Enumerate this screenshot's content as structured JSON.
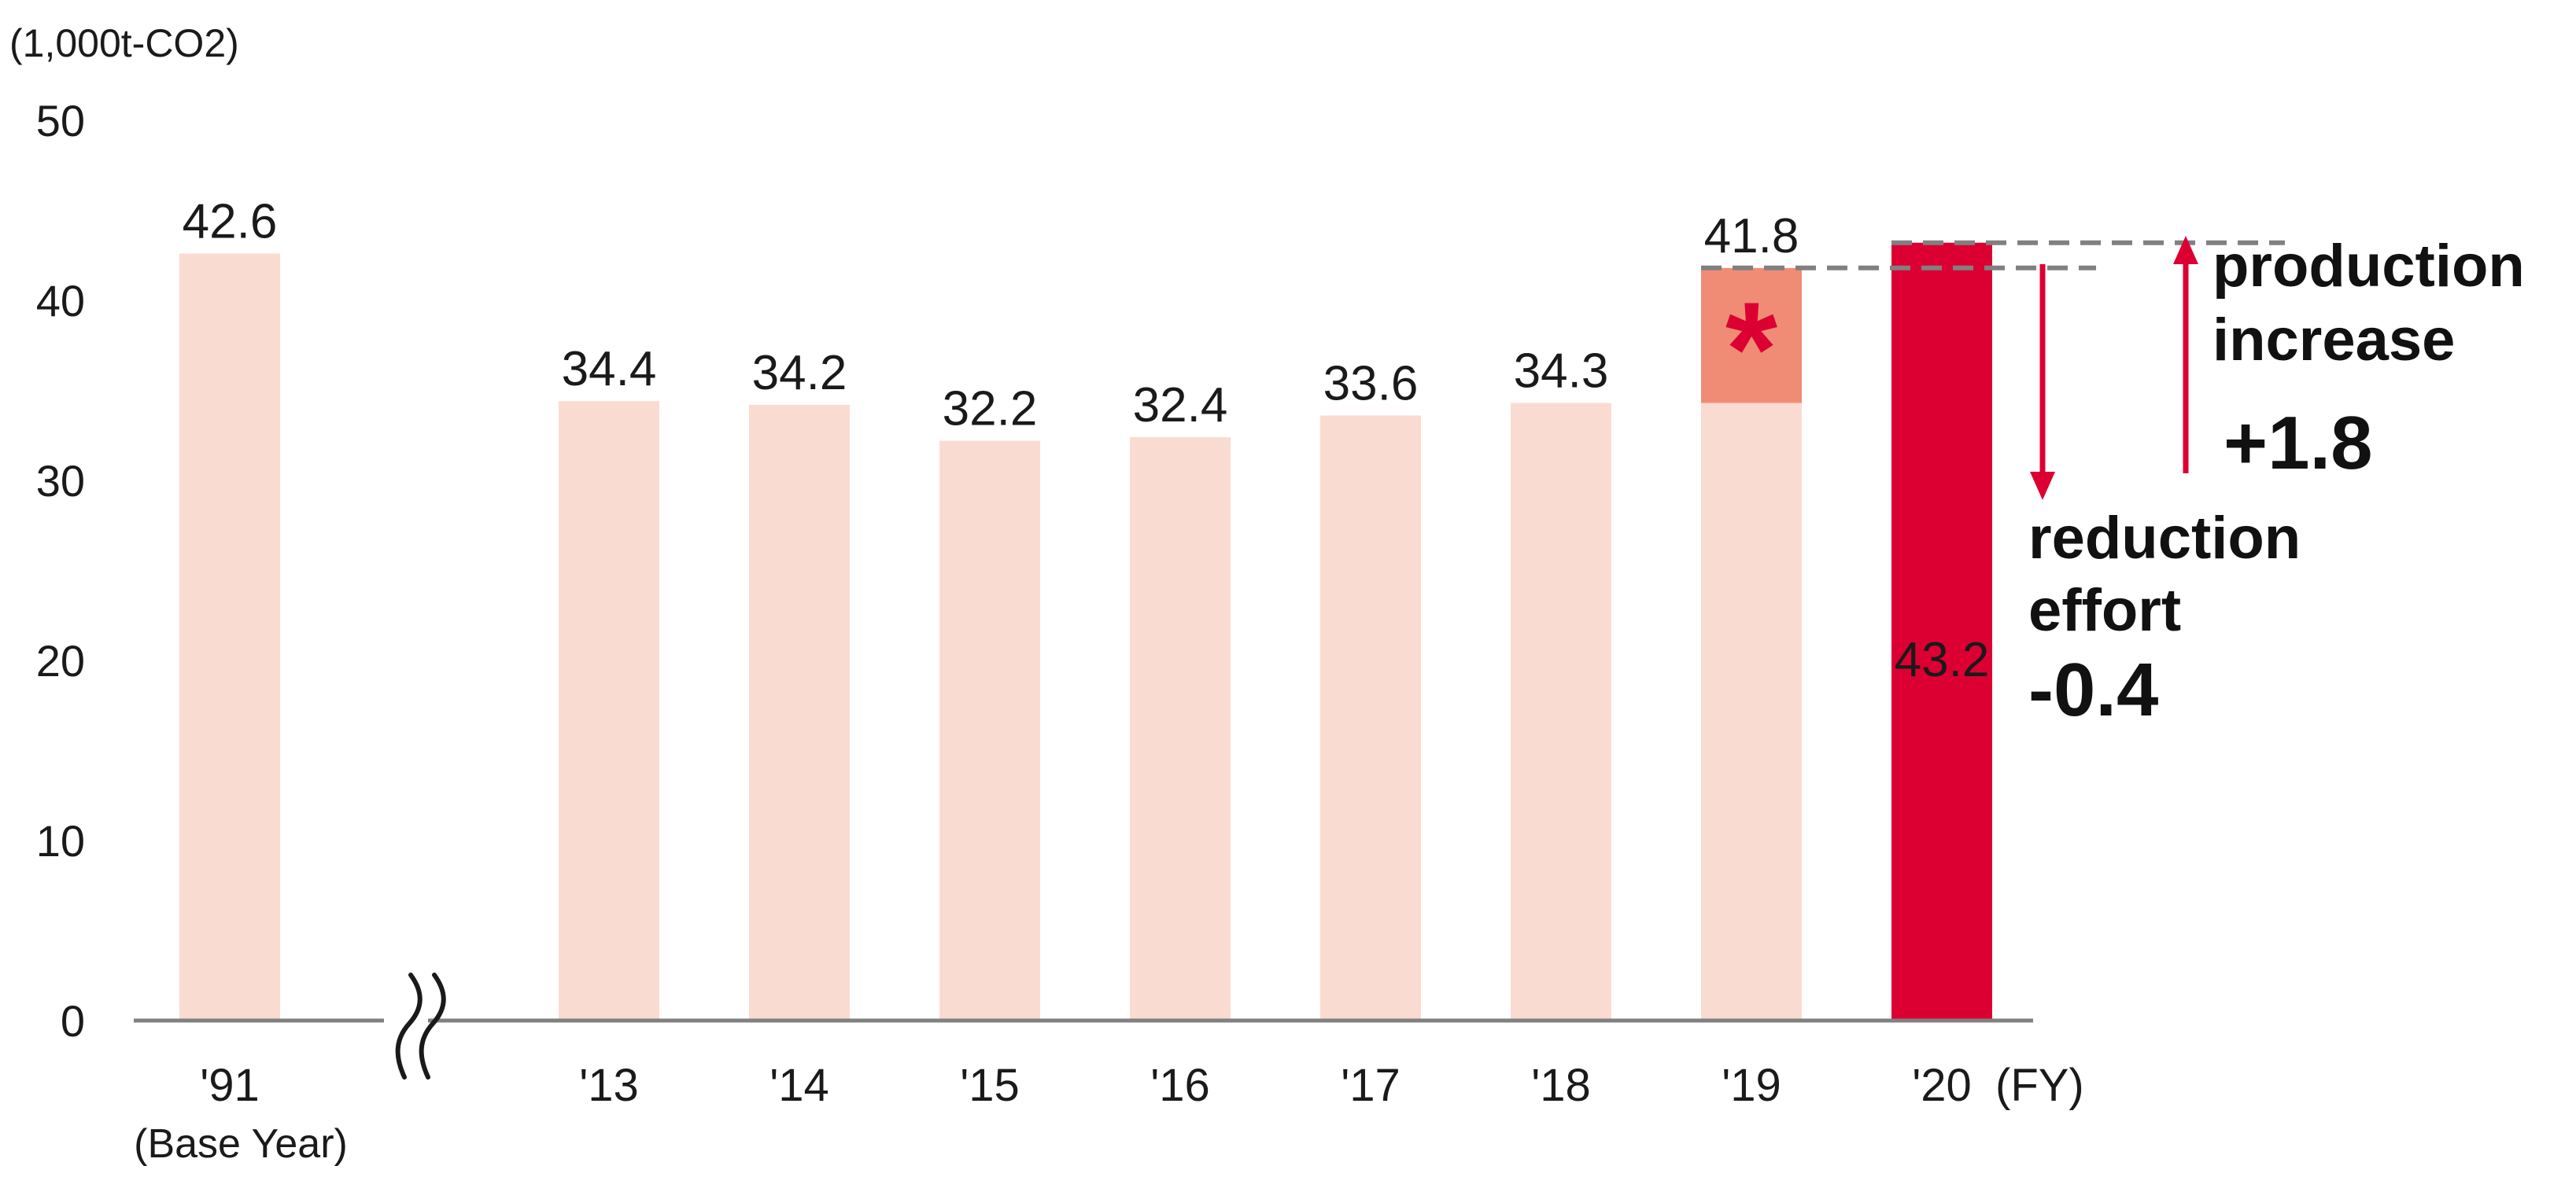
{
  "chart_data": {
    "type": "bar",
    "unit_label": "(1,000t-CO2)",
    "y_ticks": [
      "0",
      "10",
      "20",
      "30",
      "40",
      "50"
    ],
    "ylim": [
      0,
      50
    ],
    "categories": [
      "'91",
      "'13",
      "'14",
      "'15",
      "'16",
      "'17",
      "'18",
      "'19",
      "'20"
    ],
    "base_year_note": "(Base Year)",
    "x_unit": "(FY)",
    "values": [
      42.6,
      34.4,
      34.2,
      32.2,
      32.4,
      33.6,
      34.3,
      41.8,
      43.2
    ],
    "value_labels": [
      "42.6",
      "34.4",
      "34.2",
      "32.2",
      "32.4",
      "33.6",
      "34.3",
      "41.8",
      "43.2"
    ],
    "fy19_lower_segment": 34.3,
    "fy19_marker": "*",
    "axis_break": true,
    "grid": false,
    "colors": {
      "bar": "#fadbd2",
      "fy19_upper": "#f08c76",
      "fy20": "#dc0032",
      "arrow": "#dc0032",
      "dashed": "#808080",
      "axis": "#808080"
    },
    "annotations": {
      "production_line1": "production",
      "production_line2": "increase",
      "production_value": "+1.8",
      "reduction_line1": "reduction",
      "reduction_line2": "effort",
      "reduction_value": "-0.4"
    }
  }
}
